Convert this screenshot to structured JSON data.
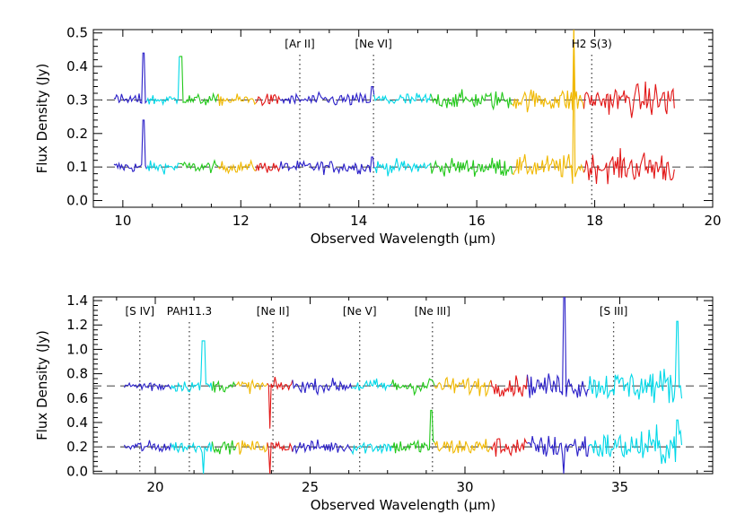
{
  "chart_data": [
    {
      "type": "line",
      "xlabel": "Observed Wavelength (μm)",
      "ylabel": "Flux Density (Jy)",
      "xlim": [
        9.5,
        20
      ],
      "ylim": [
        -0.02,
        0.51
      ],
      "x_ticks": [
        10,
        12,
        14,
        16,
        18,
        20
      ],
      "y_ticks": [
        0.0,
        0.1,
        0.2,
        0.3,
        0.4,
        0.5
      ],
      "x_tick_labels": [
        "10",
        "12",
        "14",
        "16",
        "18",
        "20"
      ],
      "y_tick_labels": [
        "0.0",
        "0.1",
        "0.2",
        "0.3",
        "0.4",
        "0.5"
      ],
      "baselines": [
        0.1,
        0.3
      ],
      "spectrum_range": [
        9.85,
        19.35
      ],
      "segment_colors": [
        "#2a1fc8",
        "#00d8e8",
        "#22c81a",
        "#f0b800",
        "#e21616"
      ],
      "segment_breaks": [
        9.85,
        10.4,
        10.95,
        11.6,
        12.25,
        12.65,
        14.25,
        15.2,
        16.6,
        17.8,
        19.35
      ],
      "lines": [
        {
          "label": "[Ar II]",
          "x": 13.0
        },
        {
          "label": "[Ne VI]",
          "x": 14.25
        },
        {
          "label": "H2 S(3)",
          "x": 17.95
        }
      ],
      "features": [
        {
          "x": 10.35,
          "upper_peak": 0.44,
          "lower_peak": 0.24
        },
        {
          "x": 10.98,
          "upper_peak": 0.43,
          "lower_peak": 0.11
        },
        {
          "x": 14.22,
          "upper_peak": 0.34,
          "lower_peak": 0.13
        },
        {
          "x": 17.63,
          "upper_peak": 0.51,
          "upper_min": 0.27,
          "lower_peak": 0.51,
          "lower_min": 0.05
        }
      ]
    },
    {
      "type": "line",
      "xlabel": "Observed Wavelength (μm)",
      "ylabel": "Flux Density (Jy)",
      "xlim": [
        18,
        38
      ],
      "ylim": [
        -0.02,
        1.43
      ],
      "x_ticks": [
        20,
        25,
        30,
        35
      ],
      "y_ticks": [
        0.0,
        0.2,
        0.4,
        0.6,
        0.8,
        1.0,
        1.2,
        1.4
      ],
      "x_tick_labels": [
        "20",
        "25",
        "30",
        "35"
      ],
      "y_tick_labels": [
        "0.0",
        "0.2",
        "0.4",
        "0.6",
        "0.8",
        "1.0",
        "1.2",
        "1.4"
      ],
      "baselines": [
        0.2,
        0.7
      ],
      "spectrum_range": [
        19.0,
        37.0
      ],
      "segment_colors": [
        "#2a1fc8",
        "#00d8e8",
        "#22c81a",
        "#f0b800",
        "#e21616"
      ],
      "segment_breaks": [
        19.0,
        20.5,
        21.8,
        22.6,
        23.6,
        24.4,
        26.3,
        27.6,
        29.0,
        30.8,
        32.0,
        34.0,
        37.0
      ],
      "lines": [
        {
          "label": "[S IV]",
          "x": 19.5
        },
        {
          "label": "PAH11.3",
          "x": 21.1
        },
        {
          "label": "[Ne II]",
          "x": 23.8
        },
        {
          "label": "[Ne V]",
          "x": 26.6
        },
        {
          "label": "[Ne III]",
          "x": 28.95
        },
        {
          "label": "[S III]",
          "x": 34.8
        }
      ],
      "features": [
        {
          "x": 21.55,
          "upper_peak": 1.07,
          "lower_min": -0.02
        },
        {
          "x": 23.7,
          "upper_min": 0.35,
          "lower_min": -0.02
        },
        {
          "x": 28.92,
          "upper_peak": 0.75,
          "lower_peak": 0.5
        },
        {
          "x": 33.2,
          "upper_peak": 1.43,
          "lower_min": -0.02
        },
        {
          "x": 36.85,
          "upper_peak": 1.23,
          "lower_peak": 0.42
        }
      ]
    }
  ]
}
